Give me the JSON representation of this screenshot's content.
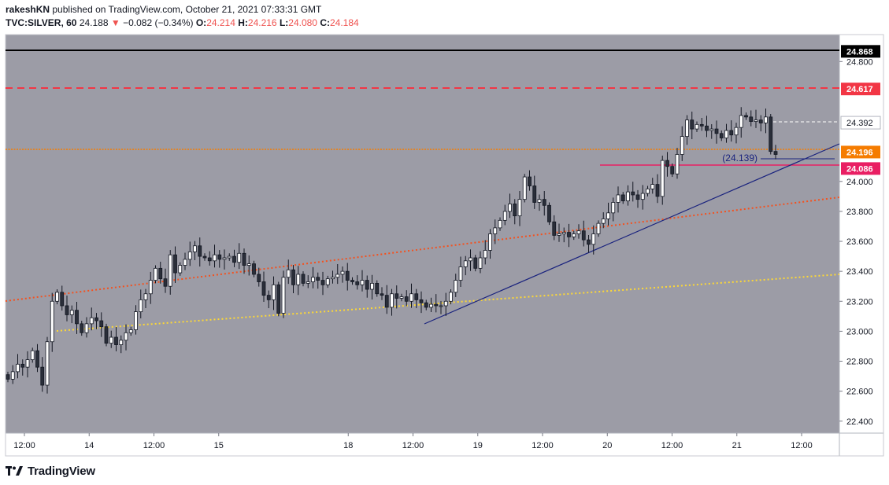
{
  "header": {
    "author": "rakeshKN",
    "published_text": "published on TradingView.com, October 21, 2021 07:33:31 GMT",
    "symbol": "TVC:SILVER, 60",
    "last": "24.188",
    "change_arrow": "▼",
    "change": "−0.082 (−0.34%)",
    "o_label": "O:",
    "o": "24.214",
    "h_label": "H:",
    "h": "24.216",
    "l_label": "L:",
    "l": "24.080",
    "c_label": "C:",
    "c": "24.184"
  },
  "footer": {
    "brand": "TradingView"
  },
  "colors": {
    "plot_bg": "#9c9ca6",
    "candle_up": "#ffffff",
    "candle_down": "#2a2e39",
    "black_line": "#000000",
    "red_dashed": "#f23645",
    "orange": "#f57c00",
    "orange_dotted": "#f4511e",
    "yellow_dotted": "#fdd835",
    "blue": "#1a237e",
    "magenta": "#e91e63"
  },
  "chart_data": {
    "type": "candlestick",
    "y_range": [
      22.32,
      24.98
    ],
    "y_ticks": [
      "22.400",
      "22.600",
      "22.800",
      "23.000",
      "23.200",
      "23.400",
      "23.600",
      "23.800",
      "24.000",
      "24.800"
    ],
    "x_ticks": [
      "12:00",
      "14",
      "12:00",
      "15",
      "18",
      "12:00",
      "19",
      "12:00",
      "20",
      "12:00",
      "21",
      "12:00"
    ],
    "x_tick_hours": [
      -12,
      0,
      12,
      24,
      48,
      60,
      72,
      84,
      96,
      108,
      120,
      132
    ],
    "x_hour_range": [
      -15.5,
      139
    ],
    "level_labels": [
      {
        "value": 24.868,
        "text": "24.868",
        "style": "black"
      },
      {
        "value": 24.617,
        "text": "24.617",
        "style": "red"
      },
      {
        "value": 24.392,
        "text": "24.392",
        "style": "white"
      },
      {
        "value": 24.196,
        "text": "24.196",
        "style": "orange"
      },
      {
        "value": 24.086,
        "text": "24.086",
        "style": "magenta"
      }
    ],
    "annotation": {
      "text": "(24.139)",
      "value": 24.139
    },
    "closes": [
      22.68,
      22.73,
      22.78,
      22.76,
      22.81,
      22.87,
      22.76,
      22.64,
      22.93,
      23.2,
      23.26,
      23.17,
      23.11,
      23.14,
      23.05,
      22.99,
      23.05,
      23.09,
      23.07,
      23.03,
      22.92,
      22.96,
      22.91,
      22.94,
      22.99,
      23.01,
      23.13,
      23.21,
      23.25,
      23.34,
      23.42,
      23.35,
      23.3,
      23.51,
      23.39,
      23.44,
      23.48,
      23.53,
      23.57,
      23.5,
      23.49,
      23.47,
      23.51,
      23.48,
      23.49,
      23.5,
      23.46,
      23.52,
      23.44,
      23.45,
      23.38,
      23.33,
      23.24,
      23.21,
      23.31,
      23.12,
      23.36,
      23.41,
      23.31,
      23.38,
      23.32,
      23.33,
      23.36,
      23.34,
      23.31,
      23.35,
      23.36,
      23.38,
      23.4,
      23.34,
      23.33,
      23.31,
      23.34,
      23.28,
      23.32,
      23.25,
      23.24,
      23.16,
      23.25,
      23.22,
      23.23,
      23.2,
      23.25,
      23.21,
      23.19,
      23.16,
      23.18,
      23.17,
      23.17,
      23.2,
      23.26,
      23.34,
      23.43,
      23.47,
      23.49,
      23.42,
      23.49,
      23.54,
      23.65,
      23.69,
      23.74,
      23.8,
      23.85,
      23.77,
      23.88,
      24.03,
      23.97,
      23.86,
      23.88,
      23.84,
      23.73,
      23.64,
      23.65,
      23.66,
      23.63,
      23.65,
      23.67,
      23.61,
      23.58,
      23.65,
      23.72,
      23.75,
      23.79,
      23.86,
      23.91,
      23.87,
      23.93,
      23.91,
      23.88,
      23.92,
      23.95,
      23.98,
      23.9,
      24.14,
      24.1,
      24.05,
      24.18,
      24.3,
      24.41,
      24.35,
      24.38,
      24.37,
      24.34,
      24.35,
      24.32,
      24.29,
      24.34,
      24.31,
      24.36,
      24.44,
      24.43,
      24.4,
      24.41,
      24.39,
      24.43,
      24.2,
      24.18
    ]
  }
}
